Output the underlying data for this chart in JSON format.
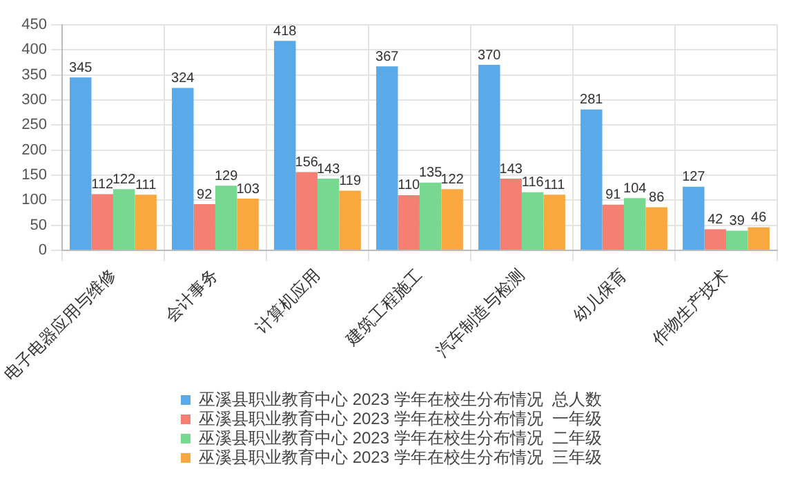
{
  "chart_data": {
    "type": "bar",
    "categories": [
      "电子电器应用与维修",
      "会计事务",
      "计算机应用",
      "建筑工程施工",
      "汽车制造与检测",
      "幼儿保育",
      "作物生产技术"
    ],
    "series": [
      {
        "name": "巫溪县职业教育中心 2023 学年在校生分布情况  总人数",
        "color": "#5aaae9",
        "values": [
          345,
          324,
          418,
          367,
          370,
          281,
          127
        ]
      },
      {
        "name": "巫溪县职业教育中心 2023 学年在校生分布情况  一年级",
        "color": "#f57f72",
        "values": [
          112,
          92,
          156,
          110,
          143,
          91,
          42
        ]
      },
      {
        "name": "巫溪县职业教育中心 2023 学年在校生分布情况  二年级",
        "color": "#77d98f",
        "values": [
          122,
          129,
          143,
          135,
          116,
          104,
          39
        ]
      },
      {
        "name": "巫溪县职业教育中心 2023 学年在校生分布情况  三年级",
        "color": "#f8a83f",
        "values": [
          111,
          103,
          119,
          122,
          111,
          86,
          46
        ]
      }
    ],
    "ylim": [
      0,
      450
    ],
    "yticks": [
      0,
      50,
      100,
      150,
      200,
      250,
      300,
      350,
      400,
      450
    ],
    "grid": true,
    "legend": "bottom",
    "data_labels": true
  }
}
